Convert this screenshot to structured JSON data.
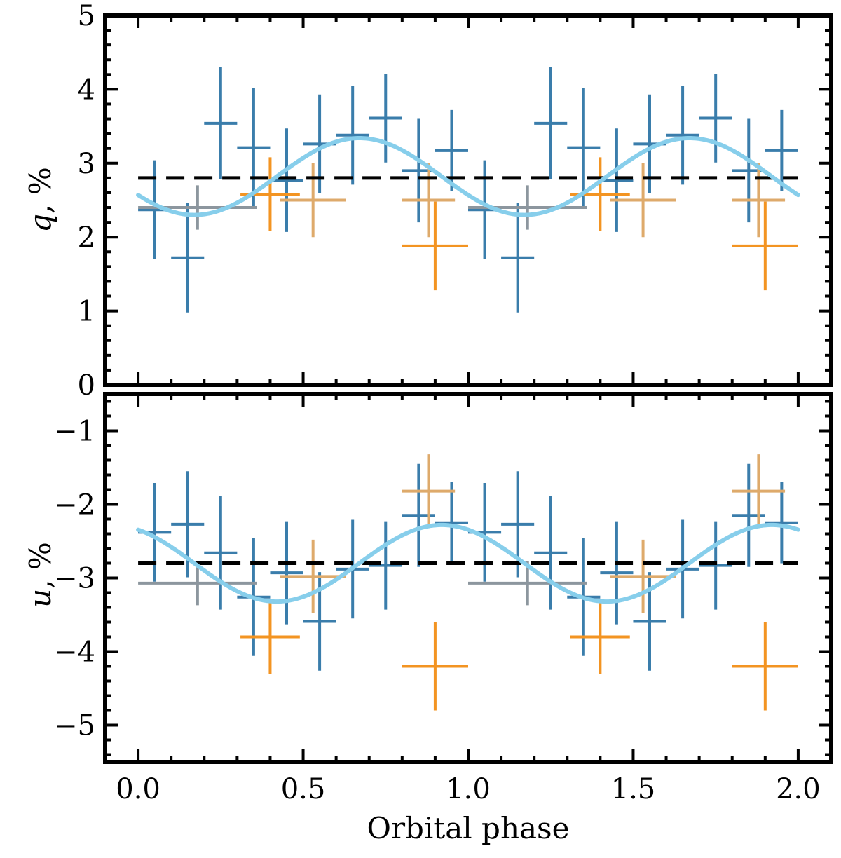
{
  "chart_data": [
    {
      "type": "scatter",
      "panel": "top",
      "ylabel_var": "q",
      "ylabel_unit": ", %",
      "xlabel": "",
      "xlim": [
        -0.1,
        2.1
      ],
      "ylim": [
        0,
        5
      ],
      "yticks": [
        0,
        1,
        2,
        3,
        4,
        5
      ],
      "ytick_labels": [
        "0",
        "1",
        "2",
        "3",
        "4",
        "5"
      ],
      "reference_line": {
        "y": 2.8,
        "style": "dashed",
        "color": "#000000"
      },
      "model_curve": {
        "name": "model",
        "color": "#87ceeb",
        "mean": 2.82,
        "amplitude": 0.52,
        "phase_of_max": 0.67
      },
      "series": [
        {
          "name": "blue",
          "color": "#3a7dab",
          "points": [
            {
              "x": 0.05,
              "y": 2.37,
              "xerr": 0.05,
              "yerr": 0.67
            },
            {
              "x": 0.15,
              "y": 1.72,
              "xerr": 0.05,
              "yerr": 0.74
            },
            {
              "x": 0.25,
              "y": 3.54,
              "xerr": 0.05,
              "yerr": 0.76
            },
            {
              "x": 0.35,
              "y": 3.21,
              "xerr": 0.05,
              "yerr": 0.81
            },
            {
              "x": 0.45,
              "y": 2.77,
              "xerr": 0.05,
              "yerr": 0.7
            },
            {
              "x": 0.55,
              "y": 3.26,
              "xerr": 0.05,
              "yerr": 0.67
            },
            {
              "x": 0.65,
              "y": 3.38,
              "xerr": 0.05,
              "yerr": 0.67
            },
            {
              "x": 0.75,
              "y": 3.61,
              "xerr": 0.05,
              "yerr": 0.6
            },
            {
              "x": 0.85,
              "y": 2.9,
              "xerr": 0.05,
              "yerr": 0.7
            },
            {
              "x": 0.95,
              "y": 3.17,
              "xerr": 0.05,
              "yerr": 0.55
            },
            {
              "x": 1.05,
              "y": 2.37,
              "xerr": 0.05,
              "yerr": 0.67
            },
            {
              "x": 1.15,
              "y": 1.72,
              "xerr": 0.05,
              "yerr": 0.74
            },
            {
              "x": 1.25,
              "y": 3.54,
              "xerr": 0.05,
              "yerr": 0.76
            },
            {
              "x": 1.35,
              "y": 3.21,
              "xerr": 0.05,
              "yerr": 0.81
            },
            {
              "x": 1.45,
              "y": 2.77,
              "xerr": 0.05,
              "yerr": 0.7
            },
            {
              "x": 1.55,
              "y": 3.26,
              "xerr": 0.05,
              "yerr": 0.67
            },
            {
              "x": 1.65,
              "y": 3.38,
              "xerr": 0.05,
              "yerr": 0.67
            },
            {
              "x": 1.75,
              "y": 3.61,
              "xerr": 0.05,
              "yerr": 0.6
            },
            {
              "x": 1.85,
              "y": 2.9,
              "xerr": 0.05,
              "yerr": 0.7
            },
            {
              "x": 1.95,
              "y": 3.17,
              "xerr": 0.05,
              "yerr": 0.55
            }
          ]
        },
        {
          "name": "gray",
          "color": "#8c969e",
          "points": [
            {
              "x": 0.18,
              "y": 2.4,
              "xerr": 0.18,
              "yerr": 0.3
            },
            {
              "x": 1.18,
              "y": 2.4,
              "xerr": 0.18,
              "yerr": 0.3
            }
          ]
        },
        {
          "name": "orange",
          "color": "#f39422",
          "points": [
            {
              "x": 0.4,
              "y": 2.58,
              "xerr": 0.09,
              "yerr": 0.5
            },
            {
              "x": 0.9,
              "y": 1.88,
              "xerr": 0.1,
              "yerr": 0.6
            },
            {
              "x": 1.4,
              "y": 2.58,
              "xerr": 0.09,
              "yerr": 0.5
            },
            {
              "x": 1.9,
              "y": 1.88,
              "xerr": 0.1,
              "yerr": 0.6
            }
          ]
        },
        {
          "name": "tan",
          "color": "#deaa6b",
          "points": [
            {
              "x": 0.53,
              "y": 2.5,
              "xerr": 0.1,
              "yerr": 0.5
            },
            {
              "x": 0.88,
              "y": 2.5,
              "xerr": 0.08,
              "yerr": 0.5
            },
            {
              "x": 1.53,
              "y": 2.5,
              "xerr": 0.1,
              "yerr": 0.5
            },
            {
              "x": 1.88,
              "y": 2.5,
              "xerr": 0.08,
              "yerr": 0.5
            }
          ]
        }
      ]
    },
    {
      "type": "scatter",
      "panel": "bottom",
      "ylabel_var": "u",
      "ylabel_unit": ", %",
      "xlabel": "Orbital phase",
      "xlim": [
        -0.1,
        2.1
      ],
      "ylim": [
        -5.5,
        -0.5
      ],
      "yticks": [
        -1,
        -2,
        -3,
        -4,
        -5
      ],
      "ytick_labels": [
        "−1",
        "−2",
        "−3",
        "−4",
        "−5"
      ],
      "xticks": [
        0.0,
        0.5,
        1.0,
        1.5,
        2.0
      ],
      "xtick_labels": [
        "0.0",
        "0.5",
        "1.0",
        "1.5",
        "2.0"
      ],
      "reference_line": {
        "y": -2.8,
        "style": "dashed",
        "color": "#000000"
      },
      "model_curve": {
        "name": "model",
        "color": "#87ceeb",
        "mean": -2.8,
        "amplitude": 0.52,
        "phase_of_max": 0.92
      },
      "series": [
        {
          "name": "blue",
          "color": "#3a7dab",
          "points": [
            {
              "x": 0.05,
              "y": -2.38,
              "xerr": 0.05,
              "yerr": 0.67
            },
            {
              "x": 0.15,
              "y": -2.27,
              "xerr": 0.05,
              "yerr": 0.72
            },
            {
              "x": 0.25,
              "y": -2.66,
              "xerr": 0.05,
              "yerr": 0.77
            },
            {
              "x": 0.35,
              "y": -3.26,
              "xerr": 0.05,
              "yerr": 0.8
            },
            {
              "x": 0.45,
              "y": -2.93,
              "xerr": 0.05,
              "yerr": 0.7
            },
            {
              "x": 0.55,
              "y": -3.59,
              "xerr": 0.05,
              "yerr": 0.67
            },
            {
              "x": 0.65,
              "y": -2.88,
              "xerr": 0.05,
              "yerr": 0.67
            },
            {
              "x": 0.75,
              "y": -2.83,
              "xerr": 0.05,
              "yerr": 0.6
            },
            {
              "x": 0.85,
              "y": -2.15,
              "xerr": 0.05,
              "yerr": 0.7
            },
            {
              "x": 0.95,
              "y": -2.25,
              "xerr": 0.05,
              "yerr": 0.55
            },
            {
              "x": 1.05,
              "y": -2.38,
              "xerr": 0.05,
              "yerr": 0.67
            },
            {
              "x": 1.15,
              "y": -2.27,
              "xerr": 0.05,
              "yerr": 0.72
            },
            {
              "x": 1.25,
              "y": -2.66,
              "xerr": 0.05,
              "yerr": 0.77
            },
            {
              "x": 1.35,
              "y": -3.26,
              "xerr": 0.05,
              "yerr": 0.8
            },
            {
              "x": 1.45,
              "y": -2.93,
              "xerr": 0.05,
              "yerr": 0.7
            },
            {
              "x": 1.55,
              "y": -3.59,
              "xerr": 0.05,
              "yerr": 0.67
            },
            {
              "x": 1.65,
              "y": -2.88,
              "xerr": 0.05,
              "yerr": 0.67
            },
            {
              "x": 1.75,
              "y": -2.83,
              "xerr": 0.05,
              "yerr": 0.6
            },
            {
              "x": 1.85,
              "y": -2.15,
              "xerr": 0.05,
              "yerr": 0.7
            },
            {
              "x": 1.95,
              "y": -2.25,
              "xerr": 0.05,
              "yerr": 0.55
            }
          ]
        },
        {
          "name": "gray",
          "color": "#8c969e",
          "points": [
            {
              "x": 0.18,
              "y": -3.07,
              "xerr": 0.18,
              "yerr": 0.3
            },
            {
              "x": 1.18,
              "y": -3.07,
              "xerr": 0.18,
              "yerr": 0.3
            }
          ]
        },
        {
          "name": "orange",
          "color": "#f39422",
          "points": [
            {
              "x": 0.4,
              "y": -3.8,
              "xerr": 0.09,
              "yerr": 0.5
            },
            {
              "x": 0.9,
              "y": -4.2,
              "xerr": 0.1,
              "yerr": 0.6
            },
            {
              "x": 1.4,
              "y": -3.8,
              "xerr": 0.09,
              "yerr": 0.5
            },
            {
              "x": 1.9,
              "y": -4.2,
              "xerr": 0.1,
              "yerr": 0.6
            }
          ]
        },
        {
          "name": "tan",
          "color": "#deaa6b",
          "points": [
            {
              "x": 0.53,
              "y": -2.98,
              "xerr": 0.1,
              "yerr": 0.5
            },
            {
              "x": 0.88,
              "y": -1.82,
              "xerr": 0.08,
              "yerr": 0.5
            },
            {
              "x": 1.53,
              "y": -2.98,
              "xerr": 0.1,
              "yerr": 0.5
            },
            {
              "x": 1.88,
              "y": -1.82,
              "xerr": 0.08,
              "yerr": 0.5
            }
          ]
        }
      ]
    }
  ]
}
